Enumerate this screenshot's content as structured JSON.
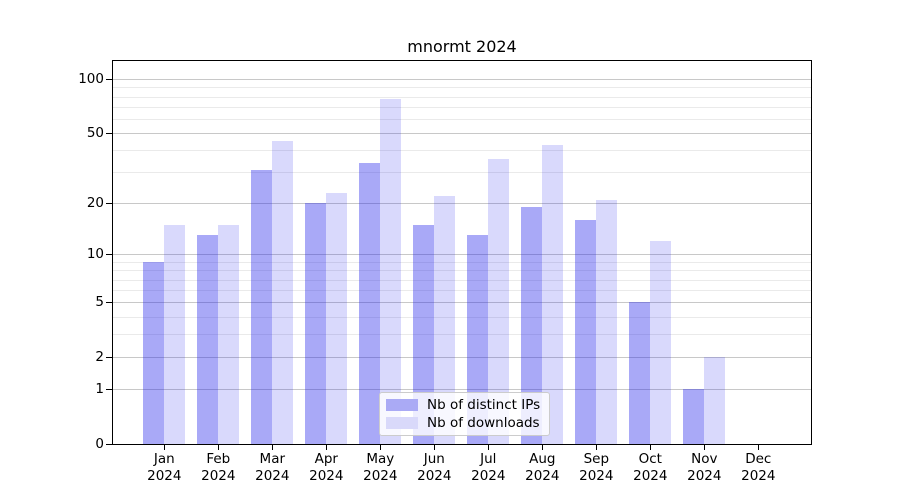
{
  "title": "mnormt 2024",
  "chart_data": {
    "type": "bar",
    "title": "mnormt 2024",
    "categories": [
      "Jan 2024",
      "Feb 2024",
      "Mar 2024",
      "Apr 2024",
      "May 2024",
      "Jun 2024",
      "Jul 2024",
      "Aug 2024",
      "Sep 2024",
      "Oct 2024",
      "Nov 2024",
      "Dec 2024"
    ],
    "series": [
      {
        "name": "Nb of distinct IPs",
        "fill": "rgba(30,30,235,0.38)",
        "swatch": "#aaaaf5",
        "values": [
          9,
          13,
          31,
          20,
          34,
          15,
          13,
          19,
          16,
          5,
          1,
          0
        ]
      },
      {
        "name": "Nb of downloads",
        "fill": "rgba(30,30,235,0.17)",
        "swatch": "#d9d9fa",
        "values": [
          15,
          15,
          45,
          23,
          78,
          22,
          36,
          43,
          21,
          12,
          2,
          0
        ]
      }
    ],
    "xlabel": "",
    "ylabel": "",
    "yscale": "log1p",
    "ylim": [
      0,
      126
    ],
    "yticks": [
      0,
      1,
      2,
      5,
      10,
      20,
      50,
      100
    ],
    "minor_yticks": [
      3,
      4,
      6,
      7,
      8,
      9,
      30,
      40,
      60,
      70,
      80,
      90
    ],
    "grid": "horizontal",
    "legend_position": "inside-bottom-center"
  },
  "colors": {
    "major_grid": "#c8c8c8",
    "minor_grid": "#eaeaea",
    "spine": "#000000",
    "background": "#ffffff"
  }
}
